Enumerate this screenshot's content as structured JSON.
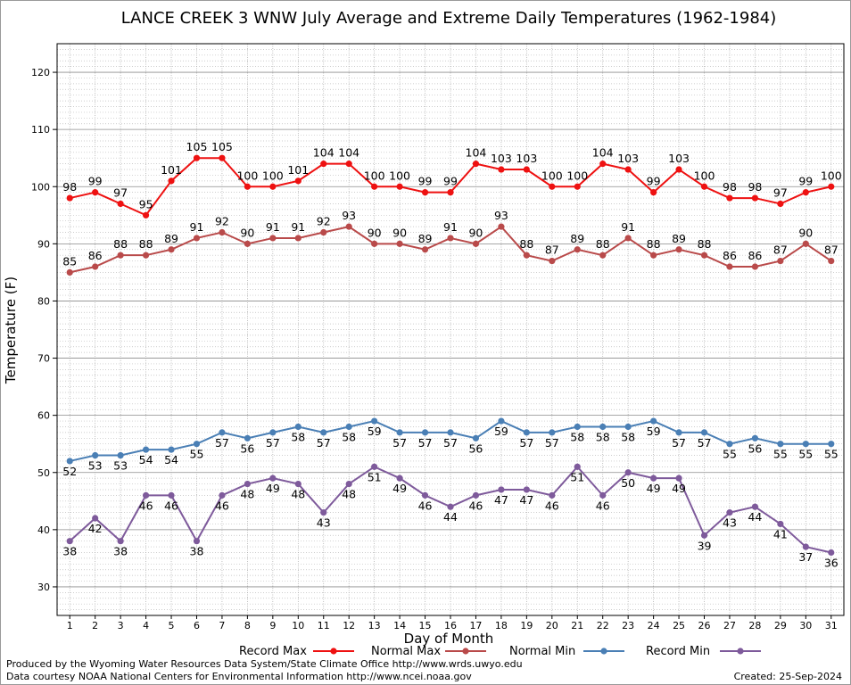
{
  "chart_data": {
    "type": "line",
    "title": "LANCE CREEK 3 WNW July Average and Extreme Daily Temperatures (1962-1984)",
    "xlabel": "Day of Month",
    "ylabel": "Temperature (F)",
    "ylim": [
      25,
      125
    ],
    "yticks": [
      30,
      40,
      50,
      60,
      70,
      80,
      90,
      100,
      110,
      120
    ],
    "x": [
      1,
      2,
      3,
      4,
      5,
      6,
      7,
      8,
      9,
      10,
      11,
      12,
      13,
      14,
      15,
      16,
      17,
      18,
      19,
      20,
      21,
      22,
      23,
      24,
      25,
      26,
      27,
      28,
      29,
      30,
      31
    ],
    "grid": true,
    "legend_position": "bottom",
    "series": [
      {
        "name": "Record Max",
        "color": "#ee1111",
        "label_position": "above",
        "values": [
          98,
          99,
          97,
          95,
          101,
          105,
          105,
          100,
          100,
          101,
          104,
          104,
          100,
          100,
          99,
          99,
          104,
          103,
          103,
          100,
          100,
          104,
          103,
          99,
          103,
          100,
          98,
          98,
          97,
          99,
          100
        ]
      },
      {
        "name": "Normal Max",
        "color": "#b94a4a",
        "label_position": "above",
        "values": [
          85,
          86,
          88,
          88,
          89,
          91,
          92,
          90,
          91,
          91,
          92,
          93,
          90,
          90,
          89,
          91,
          90,
          93,
          88,
          87,
          89,
          88,
          91,
          88,
          89,
          88,
          86,
          86,
          87,
          90,
          87
        ]
      },
      {
        "name": "Normal Min",
        "color": "#4a7fb5",
        "label_position": "below",
        "values": [
          52,
          53,
          53,
          54,
          54,
          55,
          57,
          56,
          57,
          58,
          57,
          58,
          59,
          57,
          57,
          57,
          56,
          59,
          57,
          57,
          58,
          58,
          58,
          59,
          57,
          57,
          55,
          56,
          55,
          55,
          55
        ]
      },
      {
        "name": "Record Min",
        "color": "#7e5a9b",
        "label_position": "below",
        "values": [
          38,
          42,
          38,
          46,
          46,
          38,
          46,
          48,
          49,
          48,
          43,
          48,
          51,
          49,
          46,
          44,
          46,
          47,
          47,
          46,
          51,
          46,
          50,
          49,
          49,
          39,
          43,
          44,
          41,
          37,
          36
        ]
      }
    ]
  },
  "footer": {
    "produced_by": "Produced by the Wyoming Water Resources Data System/State Climate Office http://www.wrds.uwyo.edu",
    "data_courtesy": "Data courtesy NOAA National Centers for Environmental Information http://www.ncei.noaa.gov",
    "created": "Created: 25-Sep-2024"
  }
}
